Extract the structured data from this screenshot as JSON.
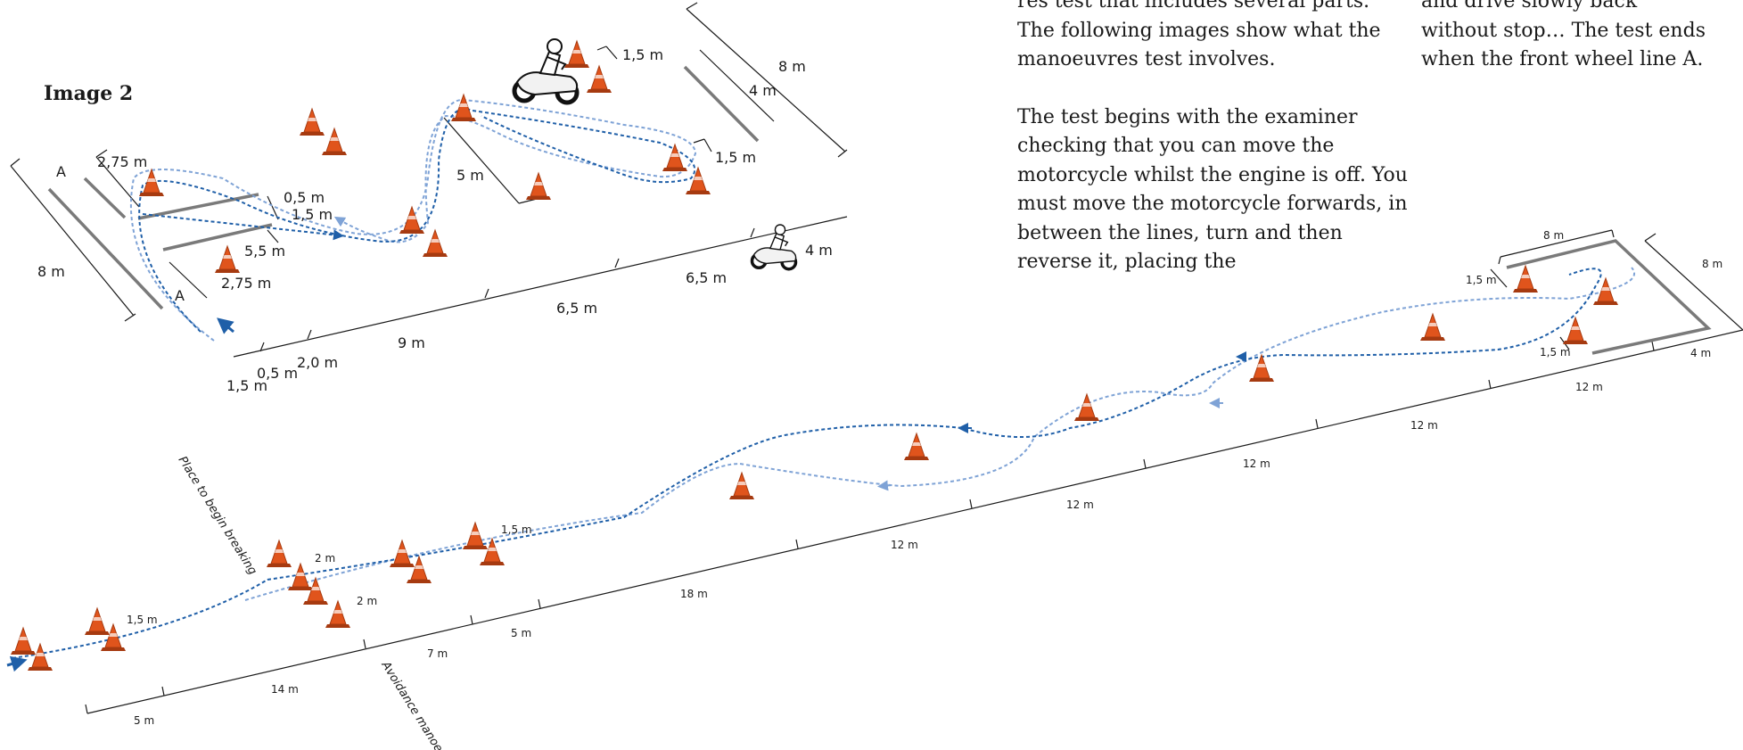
{
  "text": {
    "col1_para1": "res test that includes several parts. The following images show what the manoeuvres test involves.",
    "col1_para2": "The test begins with the examiner checking that you can move the motorcycle whilst the engine is off. You must move the motorcycle forwards, in between the lines, turn and then reverse it, placing the",
    "col2": "and drive slowly back without stop… The test ends when the front wheel line A."
  },
  "figure_label": "Image 2",
  "diagram1_labels": {
    "line_a_top": "A",
    "line_a_bottom": "A",
    "d_2_75_top": "2,75 m",
    "d_0_5_mid": "0,5 m",
    "d_1_5_mid": "1,5 m",
    "d_5_5": "5,5 m",
    "d_2_75_bot": "2,75 m",
    "d_8m_left": "8 m",
    "d_5m": "5 m",
    "d_1_5_top": "1,5 m",
    "d_4m_top": "4 m",
    "d_8m_top": "8 m",
    "d_1_5_right": "1,5 m",
    "d_4m_right": "4 m",
    "d_6_5_upper": "6,5 m",
    "d_6_5_lower": "6,5 m",
    "d_9m": "9 m",
    "d_2_0": "2,0 m",
    "d_0_5_bottom": "0,5 m",
    "d_1_5_bottom": "1,5 m"
  },
  "diagram2_labels": {
    "braking": "Place to begin breaking",
    "avoidance": "Avoidance manoeuvre",
    "d_1_5_start": "1,5 m",
    "d_2m_a": "2 m",
    "d_2m_b": "2 m",
    "d_1_5_slalom": "1,5 m",
    "d_8m_box_top": "8 m",
    "d_8m_box_right": "8 m",
    "d_1_5_box_a": "1,5 m",
    "d_1_5_box_b": "1,5 m",
    "d_4m_box": "4 m",
    "d_5m_start": "5 m",
    "d_14m": "14 m",
    "d_7m": "7 m",
    "d_5m_mid": "5 m",
    "d_18m": "18 m",
    "d_12m_1": "12 m",
    "d_12m_2": "12 m",
    "d_12m_3": "12 m",
    "d_12m_4": "12 m",
    "d_12m_5": "12 m"
  },
  "colors": {
    "cone": "#e0541c",
    "cone_dark": "#a63a10",
    "path_dark": "#1f5fa8",
    "path_light": "#7fa3d6",
    "line_gray": "#7a7a7a"
  }
}
